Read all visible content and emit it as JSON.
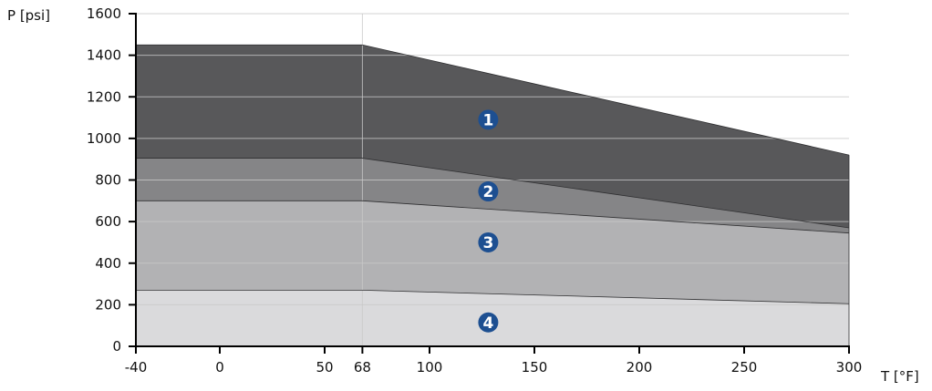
{
  "chart_data": {
    "type": "area",
    "xlabel": "T [°F]",
    "ylabel": "P [psi]",
    "xlim": [
      -40,
      300
    ],
    "ylim": [
      0,
      1600
    ],
    "x_ticks": [
      -40,
      0,
      50,
      68,
      100,
      150,
      200,
      250,
      300
    ],
    "y_ticks": [
      0,
      200,
      400,
      600,
      800,
      1000,
      1200,
      1400,
      1600
    ],
    "grid": "horizontal lines at y ticks, vertical line at x=68",
    "series": [
      {
        "name": "1",
        "color": "#58585a",
        "points": [
          [
            -40,
            1450
          ],
          [
            68,
            1450
          ],
          [
            300,
            920
          ]
        ],
        "marker_at": [
          128,
          1090
        ]
      },
      {
        "name": "2",
        "color": "#858587",
        "points": [
          [
            -40,
            905
          ],
          [
            68,
            905
          ],
          [
            300,
            570
          ]
        ],
        "marker_at": [
          128,
          745
        ]
      },
      {
        "name": "3",
        "color": "#b2b2b4",
        "points": [
          [
            -40,
            700
          ],
          [
            68,
            700
          ],
          [
            300,
            545
          ]
        ],
        "marker_at": [
          128,
          500
        ]
      },
      {
        "name": "4",
        "color": "#dadadc",
        "points": [
          [
            -40,
            270
          ],
          [
            68,
            270
          ],
          [
            300,
            205
          ]
        ],
        "marker_at": [
          128,
          115
        ]
      }
    ],
    "marker_color": "#1d4f91"
  }
}
